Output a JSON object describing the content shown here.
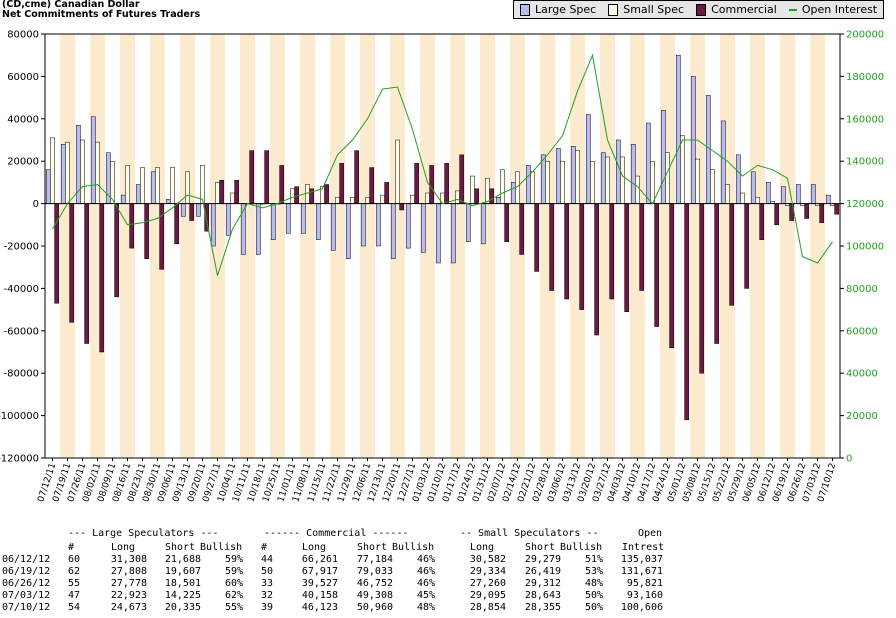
{
  "header": {
    "title": "(CD,cme) Canadian Dollar",
    "subtitle": "Net Commitments of Futures Traders"
  },
  "legend": [
    {
      "label": "Large Spec",
      "color": "#b9bcf0",
      "kind": "bar"
    },
    {
      "label": "Small Spec",
      "color": "#fffde6",
      "kind": "bar"
    },
    {
      "label": "Commercial",
      "color": "#6b1a45",
      "kind": "bar"
    },
    {
      "label": "Open Interest",
      "color": "#22a022",
      "kind": "line"
    }
  ],
  "colors": {
    "band": "#fdebd0",
    "large_spec": "#b9bcf0",
    "small_spec": "#fffde6",
    "commercial": "#6b1a45",
    "open_interest": "#22a022"
  },
  "chart_data": {
    "type": "bar",
    "title": "(CD,cme) Canadian Dollar",
    "subtitle": "Net Commitments of Futures Traders",
    "categories": [
      "07/12/11",
      "07/19/11",
      "07/26/11",
      "08/02/11",
      "08/09/11",
      "08/16/11",
      "08/23/11",
      "08/30/11",
      "09/06/11",
      "09/13/11",
      "09/20/11",
      "09/27/11",
      "10/04/11",
      "10/11/11",
      "10/18/11",
      "10/25/11",
      "11/01/11",
      "11/08/11",
      "11/15/11",
      "11/22/11",
      "11/29/11",
      "12/06/11",
      "12/13/11",
      "12/20/11",
      "12/27/11",
      "01/03/12",
      "01/10/12",
      "01/17/12",
      "01/24/12",
      "01/31/12",
      "02/07/12",
      "02/14/12",
      "02/21/12",
      "02/28/12",
      "03/06/12",
      "03/13/12",
      "03/20/12",
      "03/27/12",
      "04/03/12",
      "04/10/12",
      "04/17/12",
      "04/24/12",
      "05/01/12",
      "05/08/12",
      "05/15/12",
      "05/22/12",
      "05/29/12",
      "06/05/12",
      "06/12/12",
      "06/19/12",
      "06/26/12",
      "07/03/12",
      "07/10/12"
    ],
    "series": [
      {
        "name": "Large Spec",
        "axis": "left",
        "values": [
          16000,
          28000,
          37000,
          41000,
          24000,
          4000,
          9000,
          15000,
          2000,
          -6000,
          -6000,
          -20000,
          -15000,
          -24000,
          -24000,
          -17000,
          -14000,
          -14000,
          -17000,
          -22000,
          -26000,
          -20000,
          -20000,
          -26000,
          -21000,
          -23000,
          -28000,
          -28000,
          -18000,
          -19000,
          3000,
          10000,
          18000,
          23000,
          26000,
          27000,
          42000,
          24000,
          30000,
          28000,
          38000,
          44000,
          70000,
          60000,
          51000,
          39000,
          23000,
          15000,
          10000,
          8000,
          9000,
          9000,
          4000
        ]
      },
      {
        "name": "Small Spec",
        "axis": "left",
        "values": [
          31000,
          29000,
          30000,
          29000,
          20000,
          18000,
          17000,
          17000,
          17000,
          15000,
          18000,
          10000,
          5000,
          0,
          0,
          0,
          7000,
          9000,
          8000,
          3000,
          3000,
          3000,
          4000,
          30000,
          4000,
          5000,
          5000,
          6000,
          13000,
          12000,
          16000,
          15000,
          15000,
          20000,
          20000,
          25000,
          20000,
          22000,
          22000,
          13000,
          20000,
          24000,
          32000,
          21000,
          16000,
          9000,
          5000,
          3000,
          1000,
          -1000,
          -1000,
          -1000,
          -1000
        ]
      },
      {
        "name": "Commercial",
        "axis": "left",
        "values": [
          -47000,
          -56000,
          -66000,
          -70000,
          -44000,
          -21000,
          -26000,
          -31000,
          -19000,
          -8000,
          -13000,
          11000,
          11000,
          25000,
          25000,
          18000,
          8000,
          7000,
          9000,
          19000,
          25000,
          17000,
          10000,
          -3000,
          19000,
          18000,
          19000,
          23000,
          7000,
          7000,
          -18000,
          -24000,
          -32000,
          -41000,
          -45000,
          -50000,
          -62000,
          -45000,
          -51000,
          -41000,
          -58000,
          -68000,
          -102000,
          -80000,
          -66000,
          -48000,
          -40000,
          -17000,
          -10000,
          -8000,
          -7000,
          -9000,
          -5000
        ]
      },
      {
        "name": "Open Interest",
        "axis": "right",
        "values": [
          108000,
          120000,
          128000,
          129000,
          122000,
          110000,
          111000,
          113000,
          118000,
          124000,
          122000,
          86000,
          108000,
          120000,
          118000,
          120000,
          123000,
          125000,
          127000,
          143000,
          150000,
          160000,
          174000,
          175000,
          155000,
          130000,
          120000,
          122000,
          119000,
          121000,
          125000,
          128000,
          135000,
          143000,
          152000,
          173000,
          190000,
          150000,
          133000,
          128000,
          120000,
          135000,
          150000,
          150000,
          145000,
          140000,
          133000,
          138000,
          136000,
          132000,
          95000,
          92000,
          102000
        ]
      }
    ],
    "y_left": {
      "min": -120000,
      "max": 80000,
      "ticks": [
        80000,
        60000,
        40000,
        20000,
        0,
        -20000,
        -40000,
        -60000,
        -80000,
        -100000,
        -120000
      ]
    },
    "y_right": {
      "min": 0,
      "max": 200000,
      "ticks": [
        200000,
        180000,
        160000,
        140000,
        120000,
        100000,
        80000,
        60000,
        40000,
        20000,
        0
      ]
    },
    "legend_position": "top-right",
    "grid": false
  },
  "table": {
    "groups": [
      "--- Large Speculators ---",
      "------ Commercial ------",
      "-- Small Speculators --",
      "Open"
    ],
    "columns": [
      "#",
      "Long",
      "Short",
      "Bullish",
      "#",
      "Long",
      "Short",
      "Bullish",
      "Long",
      "Short",
      "Bullish",
      "Intrest"
    ],
    "rows": [
      [
        "06/12/12",
        "60",
        "31,308",
        "21,688",
        "59%",
        "44",
        "66,261",
        "77,184",
        "46%",
        "30,582",
        "29,279",
        "51%",
        "135,037"
      ],
      [
        "06/19/12",
        "62",
        "27,808",
        "19,607",
        "59%",
        "50",
        "67,917",
        "79,033",
        "46%",
        "29,334",
        "26,419",
        "53%",
        "131,671"
      ],
      [
        "06/26/12",
        "55",
        "27,778",
        "18,501",
        "60%",
        "33",
        "39,527",
        "46,752",
        "46%",
        "27,260",
        "29,312",
        "48%",
        "95,821"
      ],
      [
        "07/03/12",
        "47",
        "22,923",
        "14,225",
        "62%",
        "32",
        "40,158",
        "49,308",
        "45%",
        "29,095",
        "28,643",
        "50%",
        "93,160"
      ],
      [
        "07/10/12",
        "54",
        "24,673",
        "20,335",
        "55%",
        "39",
        "46,123",
        "50,960",
        "48%",
        "28,854",
        "28,355",
        "50%",
        "100,606"
      ]
    ]
  }
}
